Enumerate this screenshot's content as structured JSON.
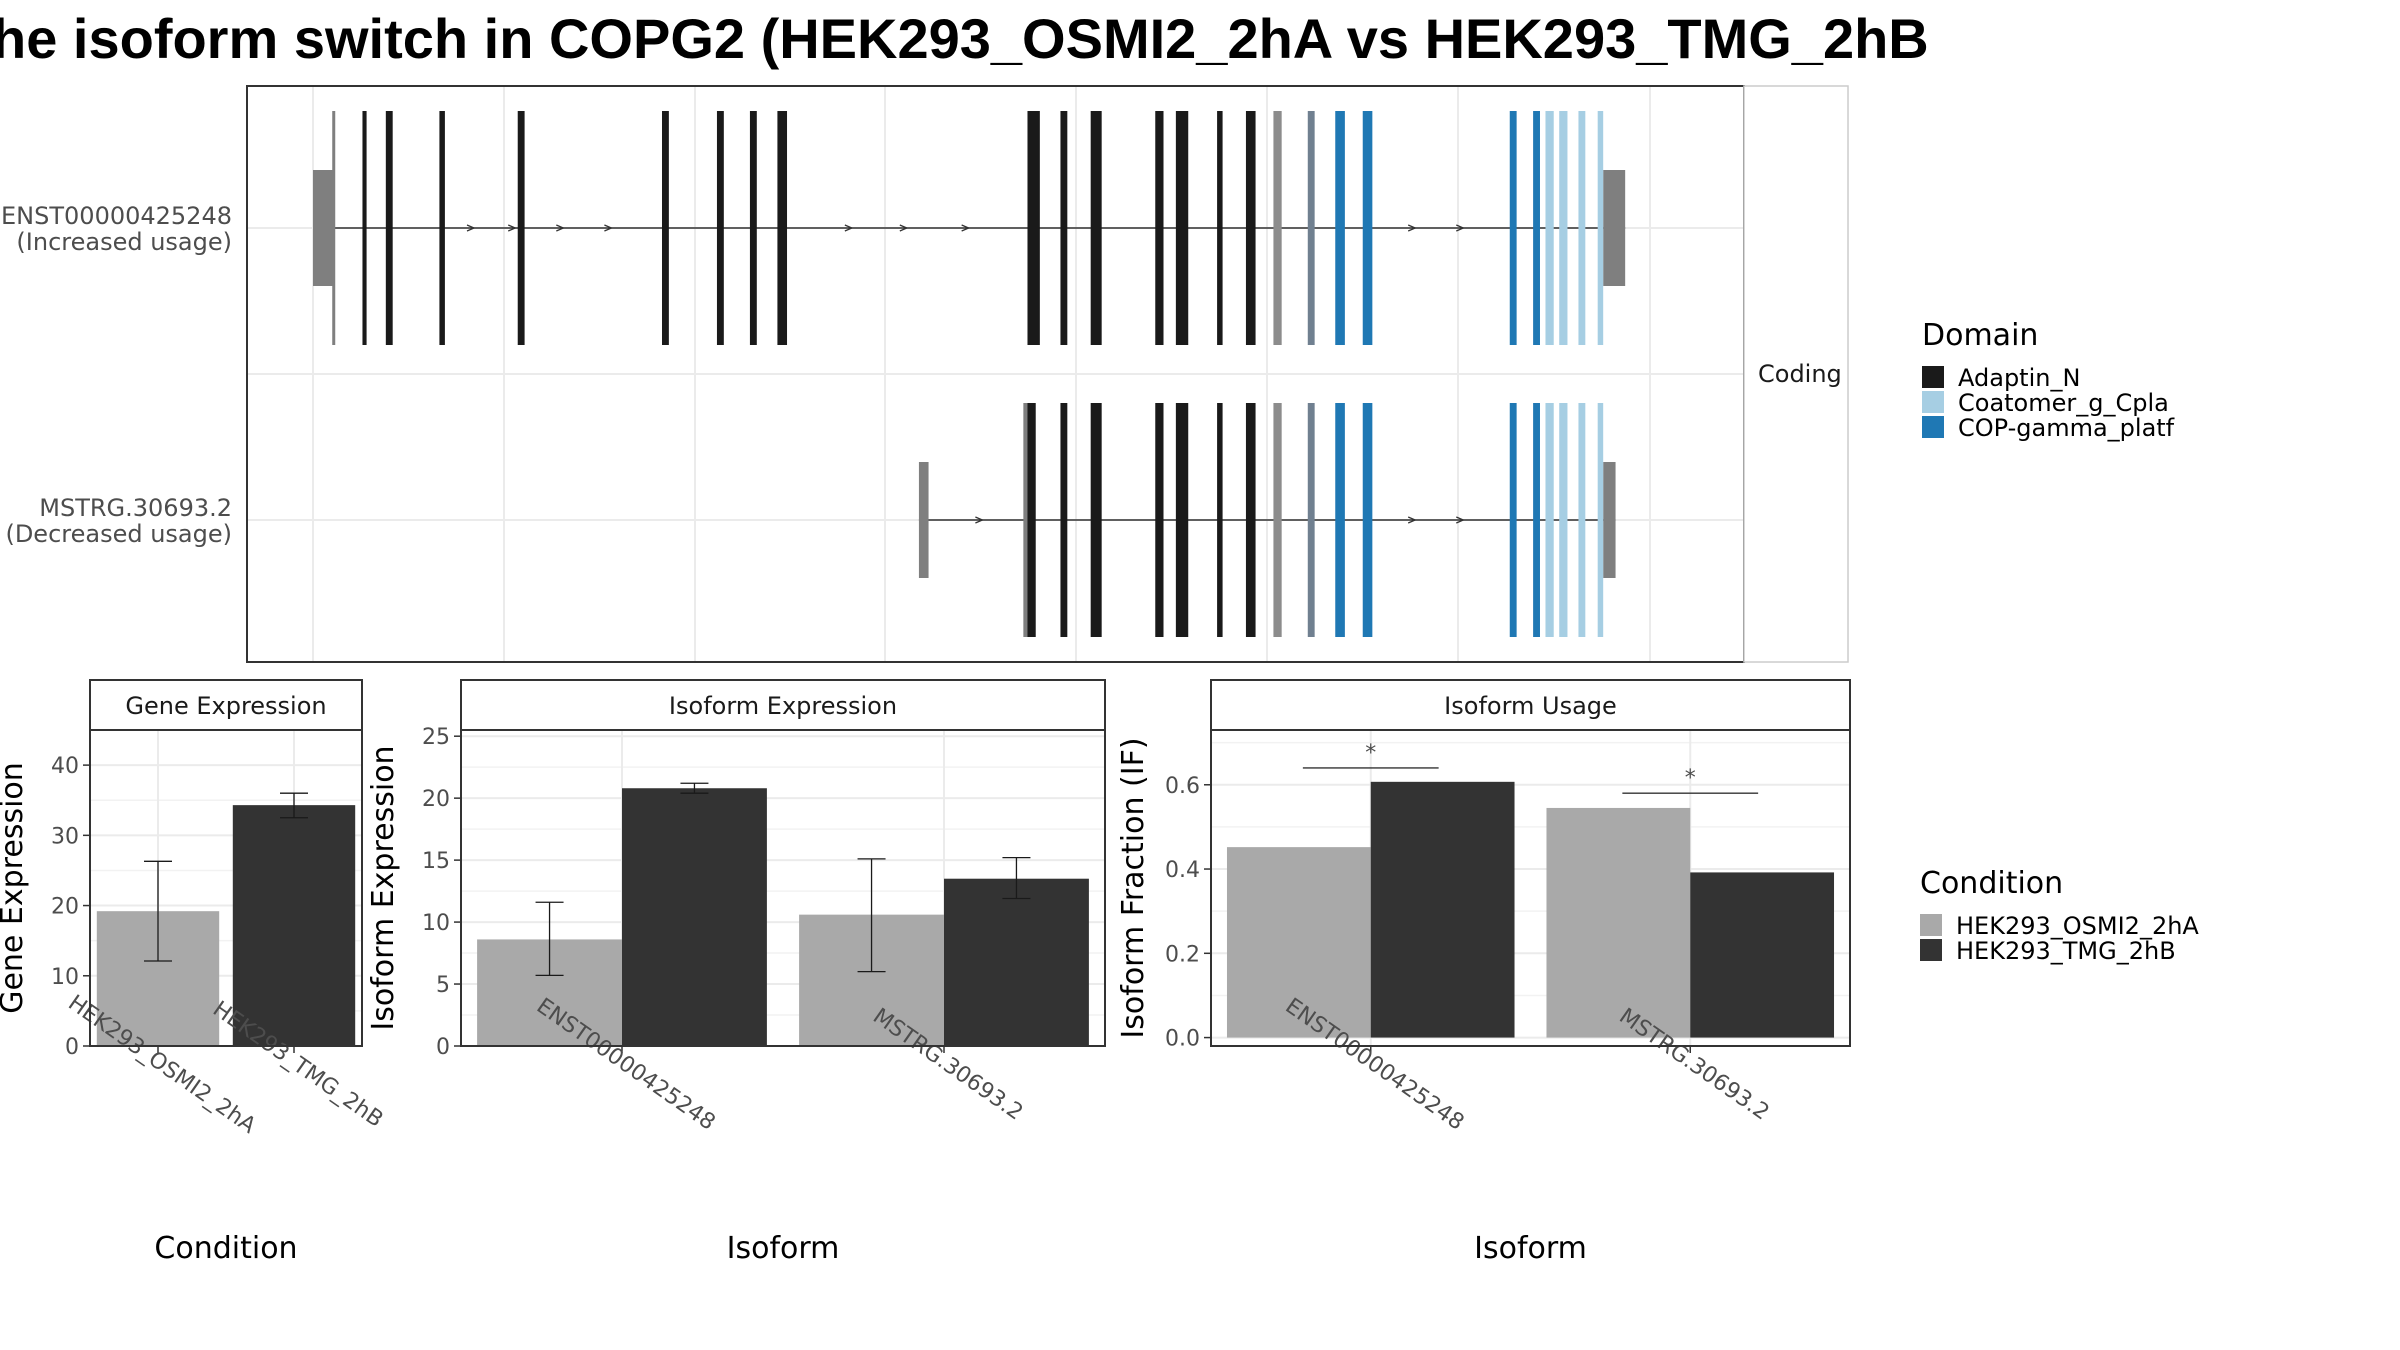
{
  "title": "he isoform switch in COPG2 (HEK293_OSMI2_2hA vs HEK293_TMG_2hB",
  "colors": {
    "adaptin": "#1a1a1a",
    "coatomer": "#a6cee3",
    "copgamma": "#1f78b4",
    "utr": "#7f7f7f",
    "grey_exon": "#8c8c8c",
    "slate_exon": "#708090",
    "osmi": "#a9a9a9",
    "tmg": "#333333"
  },
  "structure": {
    "facet_label": "Coding",
    "isoforms": [
      {
        "id": "ENST00000425248",
        "status": "(Increased usage)",
        "utr_start": [
          0.0,
          0.015
        ],
        "utr_end": [
          0.939,
          0.955
        ],
        "cds_exons": [
          [
            0.014,
            0.016,
            "utr"
          ],
          [
            0.036,
            0.039,
            "adaptin"
          ],
          [
            0.053,
            0.058,
            "adaptin"
          ],
          [
            0.092,
            0.096,
            "adaptin"
          ],
          [
            0.149,
            0.154,
            "adaptin"
          ],
          [
            0.254,
            0.259,
            "adaptin"
          ],
          [
            0.294,
            0.299,
            "adaptin"
          ],
          [
            0.318,
            0.323,
            "adaptin"
          ],
          [
            0.338,
            0.345,
            "adaptin"
          ],
          [
            0.52,
            0.529,
            "adaptin"
          ],
          [
            0.544,
            0.549,
            "adaptin"
          ],
          [
            0.566,
            0.574,
            "adaptin"
          ],
          [
            0.613,
            0.619,
            "adaptin"
          ],
          [
            0.628,
            0.637,
            "adaptin"
          ],
          [
            0.658,
            0.662,
            "adaptin"
          ],
          [
            0.679,
            0.686,
            "adaptin"
          ],
          [
            0.699,
            0.705,
            "grey_exon"
          ],
          [
            0.724,
            0.729,
            "slate_exon"
          ],
          [
            0.744,
            0.751,
            "copgamma"
          ],
          [
            0.764,
            0.771,
            "copgamma"
          ],
          [
            0.871,
            0.876,
            "copgamma"
          ],
          [
            0.888,
            0.893,
            "copgamma"
          ],
          [
            0.897,
            0.903,
            "coatomer"
          ],
          [
            0.907,
            0.913,
            "coatomer"
          ],
          [
            0.921,
            0.926,
            "coatomer"
          ],
          [
            0.935,
            0.939,
            "coatomer"
          ]
        ],
        "arrows": [
          0.115,
          0.145,
          0.18,
          0.215,
          0.39,
          0.43,
          0.475,
          0.8,
          0.835
        ]
      },
      {
        "id": "MSTRG.30693.2",
        "status": "(Decreased usage)",
        "utr_start": [
          0.441,
          0.448
        ],
        "utr_end": [
          0.939,
          0.948
        ],
        "cds_exons": [
          [
            0.517,
            0.521,
            "utr"
          ],
          [
            0.52,
            0.526,
            "adaptin"
          ],
          [
            0.544,
            0.549,
            "adaptin"
          ],
          [
            0.566,
            0.574,
            "adaptin"
          ],
          [
            0.613,
            0.619,
            "adaptin"
          ],
          [
            0.628,
            0.637,
            "adaptin"
          ],
          [
            0.658,
            0.662,
            "adaptin"
          ],
          [
            0.679,
            0.686,
            "adaptin"
          ],
          [
            0.699,
            0.705,
            "grey_exon"
          ],
          [
            0.724,
            0.729,
            "slate_exon"
          ],
          [
            0.744,
            0.751,
            "copgamma"
          ],
          [
            0.764,
            0.771,
            "copgamma"
          ],
          [
            0.871,
            0.876,
            "copgamma"
          ],
          [
            0.888,
            0.893,
            "copgamma"
          ],
          [
            0.897,
            0.903,
            "coatomer"
          ],
          [
            0.907,
            0.913,
            "coatomer"
          ],
          [
            0.921,
            0.926,
            "coatomer"
          ],
          [
            0.935,
            0.939,
            "coatomer"
          ]
        ],
        "arrows": [
          0.485,
          0.8,
          0.835
        ]
      }
    ]
  },
  "legend_domain": {
    "title": "Domain",
    "items": [
      {
        "label": "Adaptin_N",
        "color": "#1a1a1a"
      },
      {
        "label": "Coatomer_g_Cpla",
        "color": "#a6cee3"
      },
      {
        "label": "COP-gamma_platf",
        "color": "#1f78b4"
      }
    ]
  },
  "legend_condition": {
    "title": "Condition",
    "items": [
      {
        "label": "HEK293_OSMI2_2hA",
        "color": "#a9a9a9"
      },
      {
        "label": "HEK293_TMG_2hB",
        "color": "#333333"
      }
    ]
  },
  "chart_data": [
    {
      "type": "bar",
      "title": "Gene Expression",
      "xlabel": "Condition",
      "ylabel": "Gene Expression",
      "ylim": [
        0,
        45
      ],
      "yticks": [
        0,
        10,
        20,
        30,
        40
      ],
      "categories": [
        "HEK293_OSMI2_2hA",
        "HEK293_TMG_2hB"
      ],
      "values": [
        19.2,
        34.3
      ],
      "error_low": [
        12.1,
        32.5
      ],
      "error_high": [
        26.3,
        36.0
      ]
    },
    {
      "type": "bar",
      "title": "Isoform Expression",
      "xlabel": "Isoform",
      "ylabel": "Isoform Expression",
      "ylim": [
        0,
        25.5
      ],
      "yticks": [
        0,
        5,
        10,
        15,
        20,
        25
      ],
      "categories": [
        "ENST00000425248",
        "MSTRG.30693.2"
      ],
      "series": [
        {
          "name": "HEK293_OSMI2_2hA",
          "values": [
            8.6,
            10.6
          ],
          "error_low": [
            5.7,
            6.0
          ],
          "error_high": [
            11.6,
            15.1
          ]
        },
        {
          "name": "HEK293_TMG_2hB",
          "values": [
            20.8,
            13.5
          ],
          "error_low": [
            20.4,
            11.9
          ],
          "error_high": [
            21.2,
            15.2
          ]
        }
      ]
    },
    {
      "type": "bar",
      "title": "Isoform Usage",
      "xlabel": "Isoform",
      "ylabel": "Isoform Fraction (IF)",
      "ylim": [
        -0.02,
        0.73
      ],
      "yticks": [
        0.0,
        0.2,
        0.4,
        0.6
      ],
      "ytick_labels": [
        "0.0",
        "0.2",
        "0.4",
        "0.6"
      ],
      "categories": [
        "ENST00000425248",
        "MSTRG.30693.2"
      ],
      "series": [
        {
          "name": "HEK293_OSMI2_2hA",
          "values": [
            0.452,
            0.545
          ]
        },
        {
          "name": "HEK293_TMG_2hB",
          "values": [
            0.607,
            0.392
          ]
        }
      ],
      "significance": [
        "*",
        "*"
      ],
      "sig_y": [
        0.64,
        0.58
      ]
    }
  ]
}
